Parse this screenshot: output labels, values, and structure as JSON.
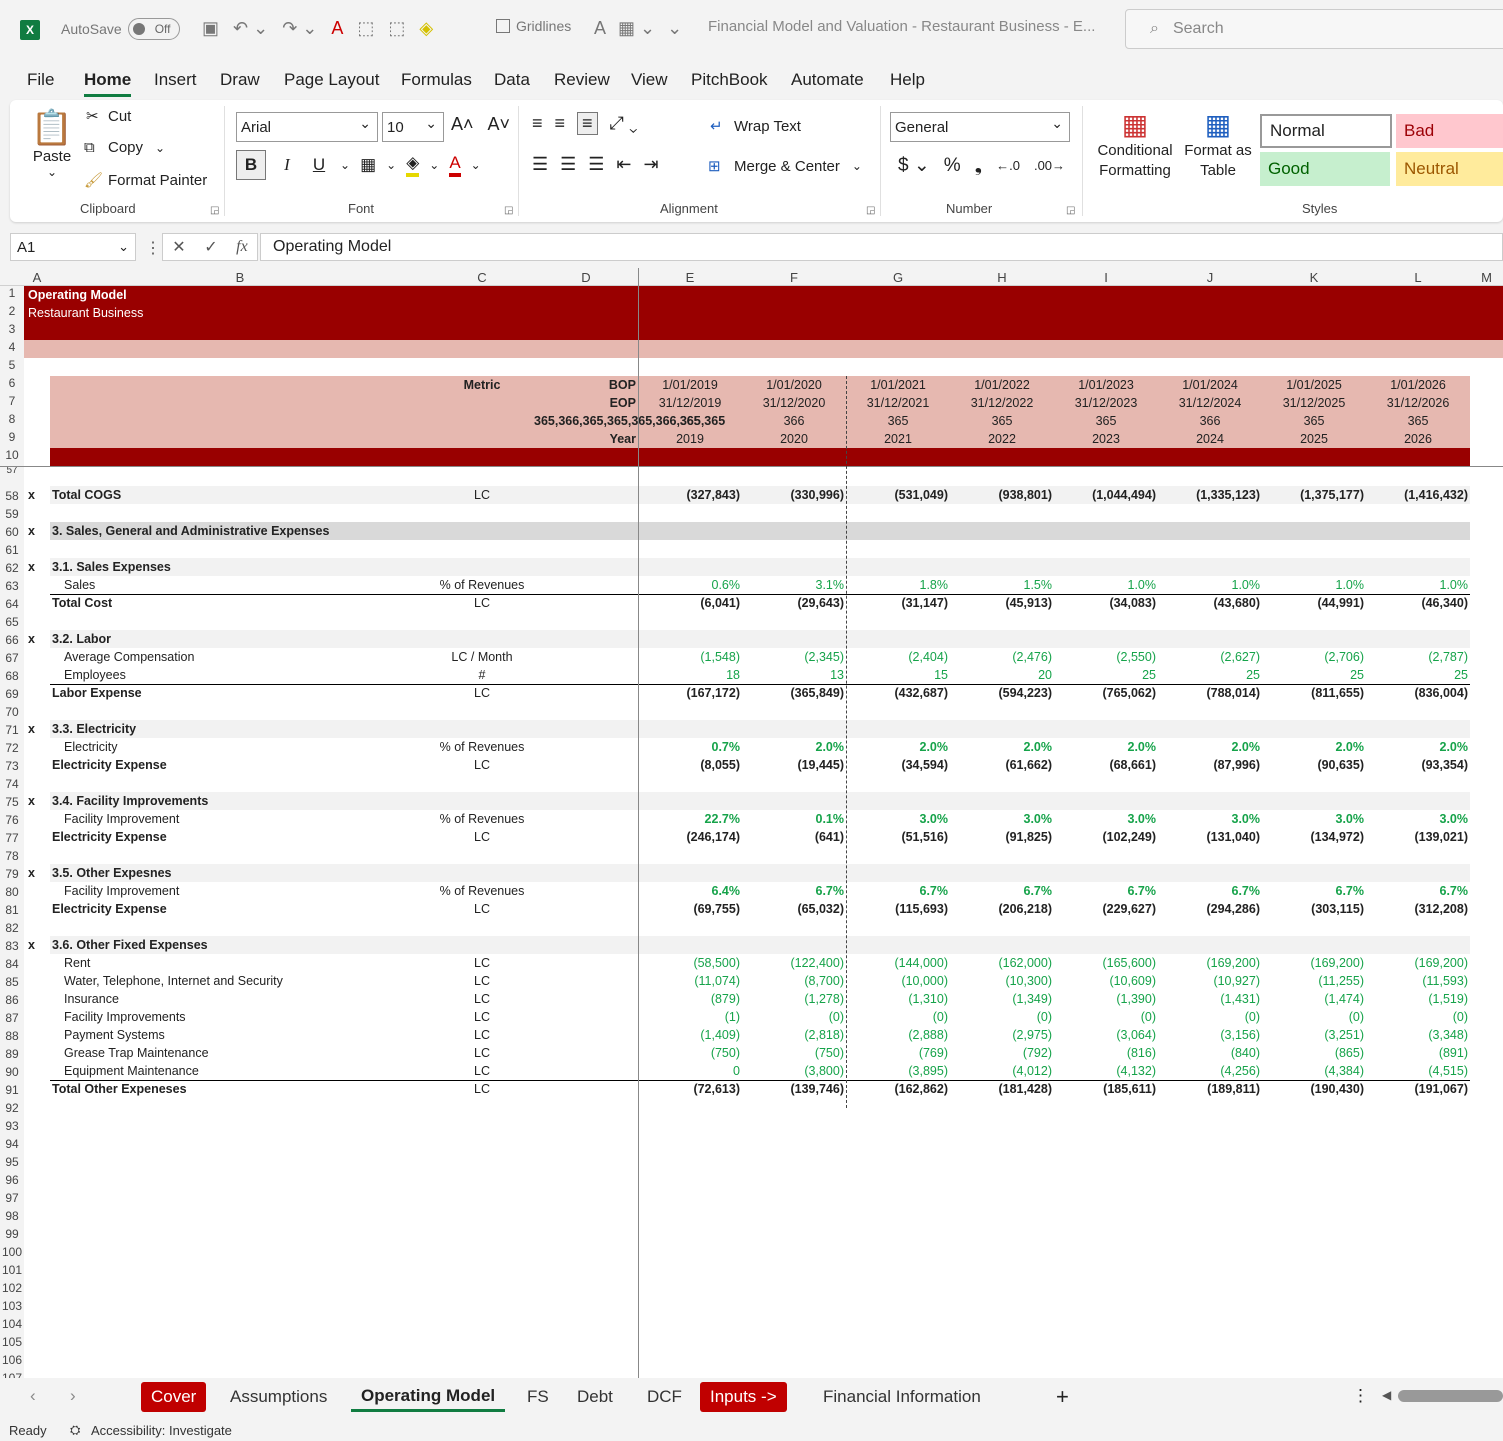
{
  "app": {
    "autosave_label": "AutoSave",
    "autosave_state": "Off",
    "gridlines_label": "Gridlines",
    "title": "Financial Model and Valuation - Restaurant Business - E...",
    "search_placeholder": "Search"
  },
  "menu": [
    "File",
    "Home",
    "Insert",
    "Draw",
    "Page Layout",
    "Formulas",
    "Data",
    "Review",
    "View",
    "PitchBook",
    "Automate",
    "Help"
  ],
  "ribbon": {
    "paste": "Paste",
    "cut": "Cut",
    "copy": "Copy",
    "format_painter": "Format Painter",
    "clipboard": "Clipboard",
    "font_name": "Arial",
    "font_size": "10",
    "font": "Font",
    "wrap_text": "Wrap Text",
    "merge_center": "Merge & Center",
    "alignment": "Alignment",
    "number_format": "General",
    "number": "Number",
    "cond_fmt": "Conditional Formatting",
    "format_table": "Format as Table",
    "styles": "Styles",
    "normal": "Normal",
    "bad": "Bad",
    "good": "Good",
    "neutral": "Neutral"
  },
  "formula": {
    "namebox": "A1",
    "content": "Operating Model"
  },
  "colors": {
    "dark_red": "#990000",
    "pink": "#e6b8b0",
    "green": "#16a34a",
    "grey_band": "#d9d9d9"
  },
  "columns": [
    "A",
    "B",
    "C",
    "D",
    "E",
    "F",
    "G",
    "H",
    "I",
    "J",
    "K",
    "L",
    "M"
  ],
  "header": {
    "title": "Operating Model",
    "subtitle": "Restaurant Business",
    "metric": "Metric",
    "bop": "BOP",
    "eop": "EOP",
    "days": [
      "365",
      "366",
      "365",
      "365",
      "365",
      "366",
      "365",
      "365"
    ],
    "year": "Year",
    "bop_dates": [
      "1/01/2019",
      "1/01/2020",
      "1/01/2021",
      "1/01/2022",
      "1/01/2023",
      "1/01/2024",
      "1/01/2025",
      "1/01/2026"
    ],
    "eop_dates": [
      "31/12/2019",
      "31/12/2020",
      "31/12/2021",
      "31/12/2022",
      "31/12/2023",
      "31/12/2024",
      "31/12/2025",
      "31/12/2026"
    ],
    "years": [
      "2019",
      "2020",
      "2021",
      "2022",
      "2023",
      "2024",
      "2025",
      "2026"
    ]
  },
  "rows": [
    {
      "n": "58",
      "x": "x",
      "label": "Total COGS",
      "unit": "LC",
      "vals": [
        "(327,843)",
        "(330,996)",
        "(531,049)",
        "(938,801)",
        "(1,044,494)",
        "(1,335,123)",
        "(1,375,177)",
        "(1,416,432)"
      ],
      "style": "total"
    },
    {
      "n": "59"
    },
    {
      "n": "60",
      "x": "x",
      "label": "3. Sales, General and Administrative Expenses",
      "style": "section"
    },
    {
      "n": "61"
    },
    {
      "n": "62",
      "x": "x",
      "label": "3.1. Sales Expenses",
      "style": "sub"
    },
    {
      "n": "63",
      "label": "Sales",
      "unit": "% of Revenues",
      "vals": [
        "0.6%",
        "3.1%",
        "1.8%",
        "1.5%",
        "1.0%",
        "1.0%",
        "1.0%",
        "1.0%"
      ],
      "style": "input"
    },
    {
      "n": "64",
      "label": "Total Cost",
      "unit": "LC",
      "vals": [
        "(6,041)",
        "(29,643)",
        "(31,147)",
        "(45,913)",
        "(34,083)",
        "(43,680)",
        "(44,991)",
        "(46,340)"
      ],
      "style": "total",
      "line": true
    },
    {
      "n": "65"
    },
    {
      "n": "66",
      "x": "x",
      "label": "3.2. Labor",
      "style": "sub"
    },
    {
      "n": "67",
      "label": "Average Compensation",
      "unit": "LC  / Month",
      "vals": [
        "(1,548)",
        "(2,345)",
        "(2,404)",
        "(2,476)",
        "(2,550)",
        "(2,627)",
        "(2,706)",
        "(2,787)"
      ],
      "style": "input"
    },
    {
      "n": "68",
      "label": "Employees",
      "unit": "#",
      "vals": [
        "18",
        "13",
        "15",
        "20",
        "25",
        "25",
        "25",
        "25"
      ],
      "style": "input"
    },
    {
      "n": "69",
      "label": "Labor Expense",
      "unit": "LC",
      "vals": [
        "(167,172)",
        "(365,849)",
        "(432,687)",
        "(594,223)",
        "(765,062)",
        "(788,014)",
        "(811,655)",
        "(836,004)"
      ],
      "style": "total",
      "line": true
    },
    {
      "n": "70"
    },
    {
      "n": "71",
      "x": "x",
      "label": "3.3. Electricity",
      "style": "sub"
    },
    {
      "n": "72",
      "label": "Electricity",
      "unit": "% of Revenues",
      "vals": [
        "0.7%",
        "2.0%",
        "2.0%",
        "2.0%",
        "2.0%",
        "2.0%",
        "2.0%",
        "2.0%"
      ],
      "style": "inputb"
    },
    {
      "n": "73",
      "label": "Electricity Expense",
      "unit": "LC",
      "vals": [
        "(8,055)",
        "(19,445)",
        "(34,594)",
        "(61,662)",
        "(68,661)",
        "(87,996)",
        "(90,635)",
        "(93,354)"
      ],
      "style": "total"
    },
    {
      "n": "74"
    },
    {
      "n": "75",
      "x": "x",
      "label": "3.4. Facility Improvements",
      "style": "sub"
    },
    {
      "n": "76",
      "label": "Facility Improvement",
      "unit": "% of Revenues",
      "vals": [
        "22.7%",
        "0.1%",
        "3.0%",
        "3.0%",
        "3.0%",
        "3.0%",
        "3.0%",
        "3.0%"
      ],
      "style": "inputb"
    },
    {
      "n": "77",
      "label": "Electricity Expense",
      "unit": "LC",
      "vals": [
        "(246,174)",
        "(641)",
        "(51,516)",
        "(91,825)",
        "(102,249)",
        "(131,040)",
        "(134,972)",
        "(139,021)"
      ],
      "style": "total"
    },
    {
      "n": "78"
    },
    {
      "n": "79",
      "x": "x",
      "label": "3.5. Other Expesnes",
      "style": "sub"
    },
    {
      "n": "80",
      "label": "Facility Improvement",
      "unit": "% of Revenues",
      "vals": [
        "6.4%",
        "6.7%",
        "6.7%",
        "6.7%",
        "6.7%",
        "6.7%",
        "6.7%",
        "6.7%"
      ],
      "style": "inputb"
    },
    {
      "n": "81",
      "label": "Electricity Expense",
      "unit": "LC",
      "vals": [
        "(69,755)",
        "(65,032)",
        "(115,693)",
        "(206,218)",
        "(229,627)",
        "(294,286)",
        "(303,115)",
        "(312,208)"
      ],
      "style": "total"
    },
    {
      "n": "82"
    },
    {
      "n": "83",
      "x": "x",
      "label": "3.6. Other Fixed Expenses",
      "style": "sub"
    },
    {
      "n": "84",
      "label": "Rent",
      "unit": "LC",
      "vals": [
        "(58,500)",
        "(122,400)",
        "(144,000)",
        "(162,000)",
        "(165,600)",
        "(169,200)",
        "(169,200)",
        "(169,200)"
      ],
      "style": "input"
    },
    {
      "n": "85",
      "label": "Water, Telephone, Internet and Security",
      "unit": "LC",
      "vals": [
        "(11,074)",
        "(8,700)",
        "(10,000)",
        "(10,300)",
        "(10,609)",
        "(10,927)",
        "(11,255)",
        "(11,593)"
      ],
      "style": "input"
    },
    {
      "n": "86",
      "label": "Insurance",
      "unit": "LC",
      "vals": [
        "(879)",
        "(1,278)",
        "(1,310)",
        "(1,349)",
        "(1,390)",
        "(1,431)",
        "(1,474)",
        "(1,519)"
      ],
      "style": "input"
    },
    {
      "n": "87",
      "label": "Facility Improvements",
      "unit": "LC",
      "vals": [
        "(1)",
        "(0)",
        "(0)",
        "(0)",
        "(0)",
        "(0)",
        "(0)",
        "(0)"
      ],
      "style": "input"
    },
    {
      "n": "88",
      "label": "Payment Systems",
      "unit": "LC",
      "vals": [
        "(1,409)",
        "(2,818)",
        "(2,888)",
        "(2,975)",
        "(3,064)",
        "(3,156)",
        "(3,251)",
        "(3,348)"
      ],
      "style": "input"
    },
    {
      "n": "89",
      "label": "Grease Trap Maintenance",
      "unit": "LC",
      "vals": [
        "(750)",
        "(750)",
        "(769)",
        "(792)",
        "(816)",
        "(840)",
        "(865)",
        "(891)"
      ],
      "style": "input"
    },
    {
      "n": "90",
      "label": "Equipment Maintenance",
      "unit": "LC",
      "vals": [
        "0",
        "(3,800)",
        "(3,895)",
        "(4,012)",
        "(4,132)",
        "(4,256)",
        "(4,384)",
        "(4,515)"
      ],
      "style": "input"
    },
    {
      "n": "91",
      "label": "Total Other Expeneses",
      "unit": "LC",
      "vals": [
        "(72,613)",
        "(139,746)",
        "(162,862)",
        "(181,428)",
        "(185,611)",
        "(189,811)",
        "(190,430)",
        "(191,067)"
      ],
      "style": "total",
      "line": true
    }
  ],
  "empty_rows": [
    "92",
    "93",
    "94",
    "95",
    "96",
    "97",
    "98",
    "99",
    "100",
    "101",
    "102",
    "103",
    "104",
    "105",
    "106",
    "107"
  ],
  "tabs": [
    "Cover",
    "Assumptions",
    "Operating Model",
    "FS",
    "Debt",
    "DCF",
    "Inputs ->",
    "Financial Information"
  ],
  "status": {
    "ready": "Ready",
    "accessibility": "Accessibility: Investigate"
  }
}
